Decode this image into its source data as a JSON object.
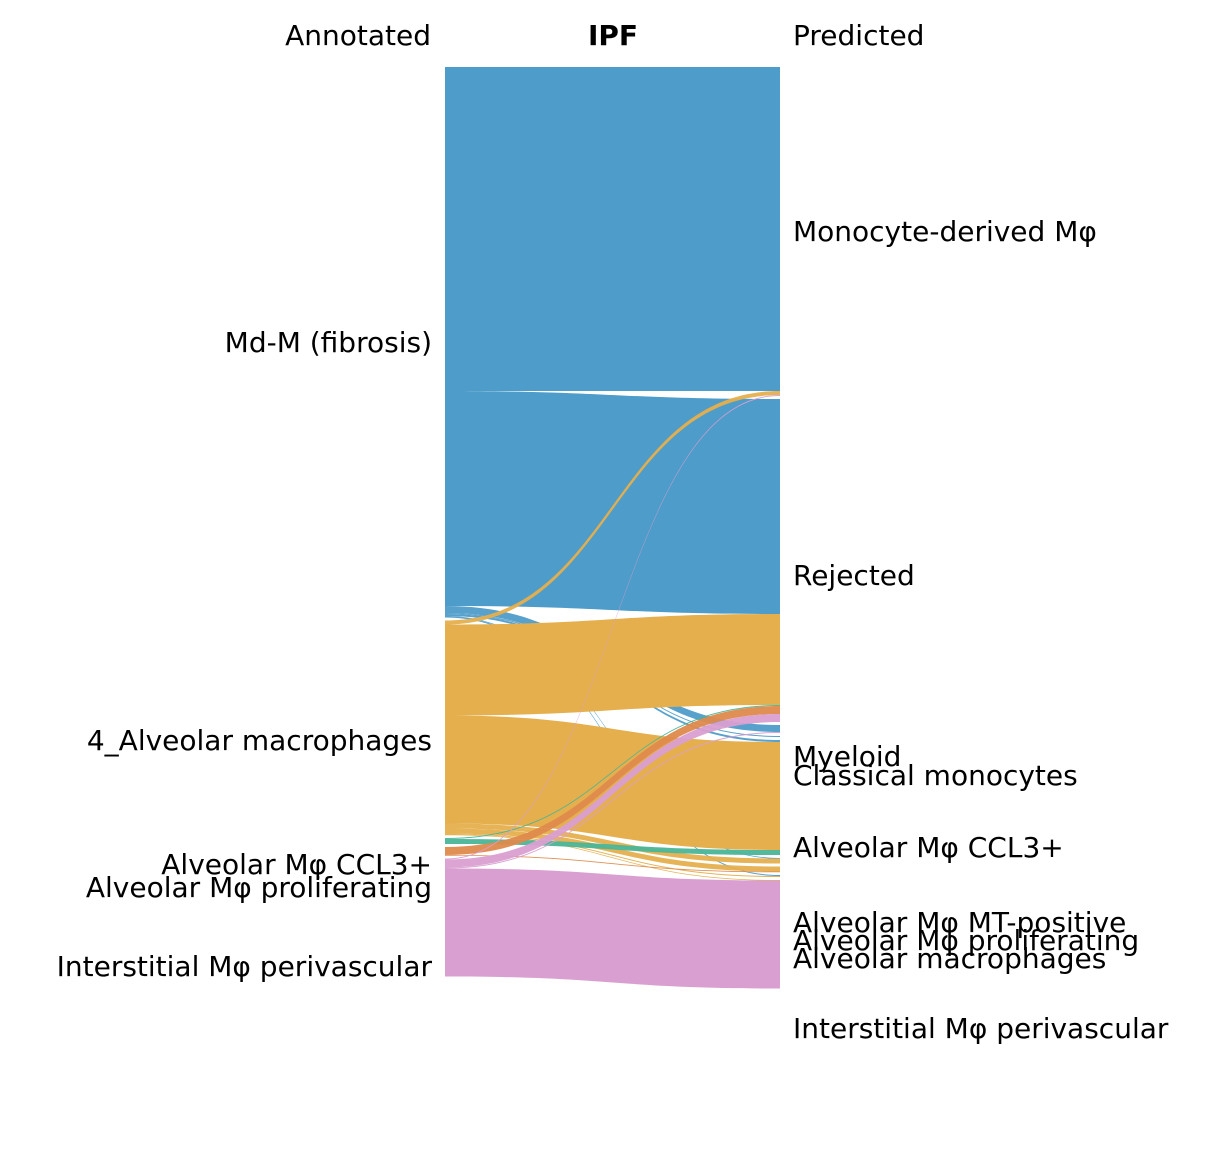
{
  "chart_data": {
    "type": "sankey",
    "title": "IPF",
    "left_axis_title": "Annotated",
    "right_axis_title": "Predicted",
    "colors": {
      "blue": "#4e9cc9",
      "yellow": "#e5af4d",
      "green": "#4ab597",
      "orange": "#df8a4c",
      "pink": "#da9fd1"
    },
    "left_labels": [
      "Md-M (fibrosis)",
      "4_Alveolar macrophages",
      "Alveolar Mφ CCL3+",
      "Alveolar Mφ proliferating",
      "Interstitial Mφ perivascular"
    ],
    "right_labels": [
      "Monocyte-derived Mφ",
      "Rejected",
      "Myeloid",
      "Classical monocytes",
      "Alveolar Mφ CCL3+",
      "Alveolar Mφ MT-positive",
      "Alveolar Mφ proliferating",
      "Alveolar macrophages",
      "Interstitial Mφ perivascular"
    ],
    "flows": [
      {
        "from": "Md-M (fibrosis)",
        "to": "Monocyte-derived Mφ",
        "color": "blue",
        "value": 32.4
      },
      {
        "from": "Md-M (fibrosis)",
        "to": "Rejected",
        "color": "blue",
        "value": 21.5
      },
      {
        "from": "Md-M (fibrosis)",
        "to": "Myeloid",
        "color": "blue",
        "value": 0.7
      },
      {
        "from": "Md-M (fibrosis)",
        "to": "Classical monocytes",
        "color": "blue",
        "value": 0.1
      },
      {
        "from": "Md-M (fibrosis)",
        "to": "Alveolar Mφ CCL3+",
        "color": "blue",
        "value": 0.2
      },
      {
        "from": "Md-M (fibrosis)",
        "to": "Alveolar macrophages",
        "color": "blue",
        "value": 0.1
      },
      {
        "from": "Md-M (fibrosis)",
        "to": "Alveolar Mφ MT-positive",
        "color": "blue",
        "value": 0.05
      },
      {
        "from": "4_Alveolar macrophages",
        "to": "Monocyte-derived Mφ",
        "color": "yellow",
        "value": 0.4
      },
      {
        "from": "4_Alveolar macrophages",
        "to": "Rejected",
        "color": "yellow",
        "value": 9.1
      },
      {
        "from": "4_Alveolar macrophages",
        "to": "Alveolar Mφ CCL3+",
        "color": "yellow",
        "value": 10.8
      },
      {
        "from": "4_Alveolar macrophages",
        "to": "Alveolar Mφ MT-positive",
        "color": "yellow",
        "value": 0.5
      },
      {
        "from": "4_Alveolar macrophages",
        "to": "Alveolar Mφ proliferating",
        "color": "yellow",
        "value": 0.5
      },
      {
        "from": "4_Alveolar macrophages",
        "to": "Alveolar macrophages",
        "color": "yellow",
        "value": 0.1
      },
      {
        "from": "4_Alveolar macrophages",
        "to": "Interstitial Mφ perivascular",
        "color": "yellow",
        "value": 0.05
      },
      {
        "from": "Alveolar Mφ CCL3+",
        "to": "Rejected",
        "color": "green",
        "value": 0.1
      },
      {
        "from": "Alveolar Mφ CCL3+",
        "to": "Alveolar Mφ CCL3+",
        "color": "green",
        "value": 0.5
      },
      {
        "from": "Alveolar Mφ proliferating",
        "to": "Rejected",
        "color": "orange",
        "value": 0.8
      },
      {
        "from": "Alveolar Mφ proliferating",
        "to": "Alveolar Mφ proliferating",
        "color": "orange",
        "value": 0.05
      },
      {
        "from": "Interstitial Mφ perivascular",
        "to": "Monocyte-derived Mφ",
        "color": "pink",
        "value": 0.1
      },
      {
        "from": "Interstitial Mφ perivascular",
        "to": "Rejected",
        "color": "pink",
        "value": 0.8
      },
      {
        "from": "Interstitial Mφ perivascular",
        "to": "Myeloid",
        "color": "pink",
        "value": 0.1
      },
      {
        "from": "Interstitial Mφ perivascular",
        "to": "Interstitial Mφ perivascular",
        "color": "pink",
        "value": 10.8
      }
    ]
  }
}
